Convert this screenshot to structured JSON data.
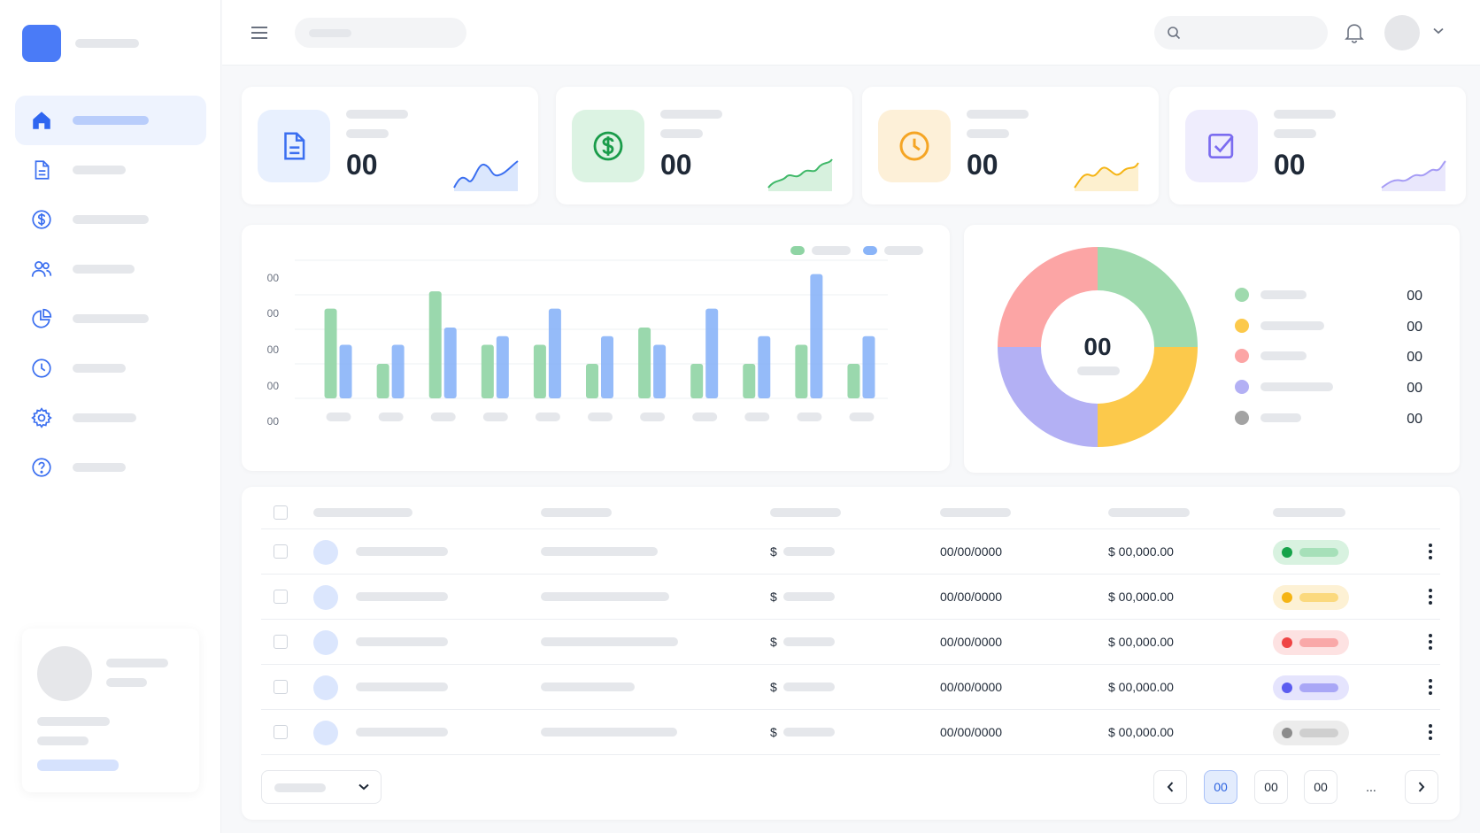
{
  "icons": {
    "logo": "app-logo",
    "nav": [
      "home-icon",
      "document-icon",
      "dollar-icon",
      "users-icon",
      "pie-chart-icon",
      "clock-icon",
      "settings-icon",
      "help-icon"
    ],
    "topbar": [
      "menu-icon",
      "search-icon",
      "bell-icon",
      "chevron-down-icon"
    ]
  },
  "colors": {
    "accent": "#4a7bf7",
    "green": "#8fd4a4",
    "blue": "#8ab4f8",
    "red": "#fca5a5",
    "yellow": "#fcc94b",
    "purple": "#b3b0f4",
    "gray": "#a3a3a3"
  },
  "stats": [
    {
      "value": "00",
      "icon": "document-icon",
      "tint": "#e8f0fe",
      "stroke": "#3b6ff0"
    },
    {
      "value": "00",
      "icon": "dollar-icon",
      "tint": "#dcf3e3",
      "stroke": "#1a9c4a"
    },
    {
      "value": "00",
      "icon": "clock-icon",
      "tint": "#fdf0d8",
      "stroke": "#f5a524"
    },
    {
      "value": "00",
      "icon": "check-square-icon",
      "tint": "#efedfd",
      "stroke": "#7b6cf0"
    }
  ],
  "chart_data": [
    {
      "type": "bar",
      "y_tick_labels": [
        "00",
        "00",
        "00",
        "00",
        "00"
      ],
      "categories": [
        "",
        "",
        "",
        "",
        "",
        "",
        "",
        "",
        "",
        "",
        ""
      ],
      "series": [
        {
          "values": [
            52,
            20,
            62,
            31,
            31,
            20,
            41,
            20,
            20,
            31,
            20
          ]
        },
        {
          "values": [
            31,
            31,
            41,
            36,
            52,
            36,
            31,
            52,
            36,
            72,
            36
          ]
        }
      ],
      "ylim": [
        0,
        80
      ],
      "grid": true,
      "legend": "top-right"
    },
    {
      "type": "pie",
      "center_value": "00",
      "slices": [
        {
          "value": 25,
          "color": "#9fdaae"
        },
        {
          "value": 25,
          "color": "#fcc94b"
        },
        {
          "value": 25,
          "color": "#b3b0f4"
        },
        {
          "value": 25,
          "color": "#fca5a5"
        }
      ],
      "legend_values": [
        "00",
        "00",
        "00",
        "00",
        "00"
      ],
      "legend": "right"
    }
  ],
  "table": {
    "rows": [
      {
        "amount_prefix": "$",
        "date": "00/00/0000",
        "total": "$ 00,000.00",
        "status_color": "#16a34a",
        "status_bg": "#d8f2e0",
        "status_bar": "#a6e0b9"
      },
      {
        "amount_prefix": "$",
        "date": "00/00/0000",
        "total": "$ 00,000.00",
        "status_color": "#f5b414",
        "status_bg": "#fdf1d4",
        "status_bar": "#fbd97e"
      },
      {
        "amount_prefix": "$",
        "date": "00/00/0000",
        "total": "$ 00,000.00",
        "status_color": "#ef4444",
        "status_bg": "#fde2e2",
        "status_bar": "#f9a8a8"
      },
      {
        "amount_prefix": "$",
        "date": "00/00/0000",
        "total": "$ 00,000.00",
        "status_color": "#5b5cf0",
        "status_bg": "#e5e4fd",
        "status_bar": "#a9a7f6"
      },
      {
        "amount_prefix": "$",
        "date": "00/00/0000",
        "total": "$ 00,000.00",
        "status_color": "#8c8c8c",
        "status_bg": "#ececec",
        "status_bar": "#cfcfcf"
      }
    ]
  },
  "pagination": {
    "prev_icon": "chevron-left-icon",
    "pages": [
      "00",
      "00",
      "00"
    ],
    "ellipsis": "...",
    "next_icon": "chevron-right-icon"
  }
}
